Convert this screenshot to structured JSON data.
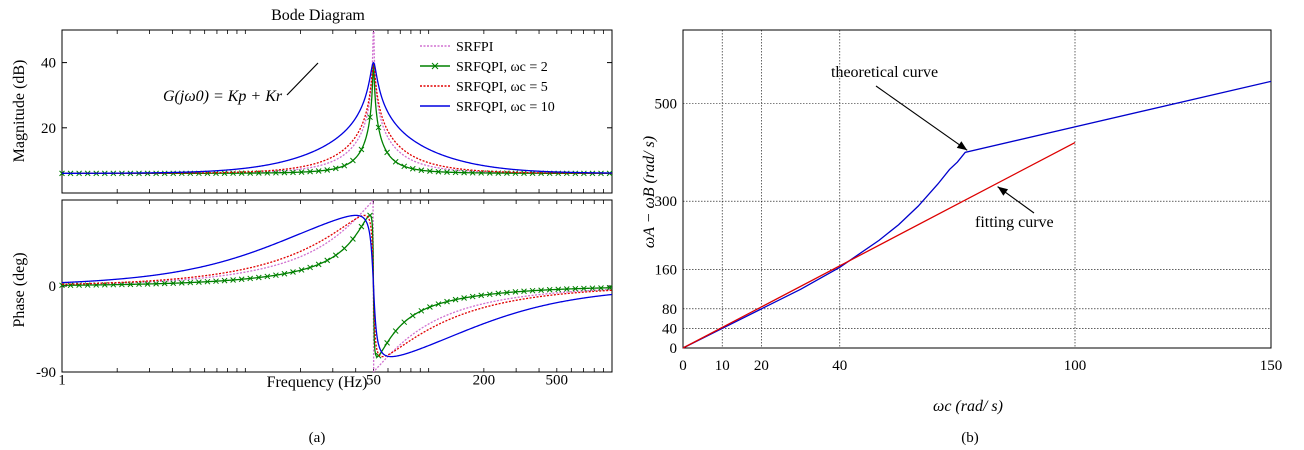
{
  "chart_data": [
    {
      "id": "a",
      "type": "line",
      "caption": "(a)",
      "title": "Bode Diagram",
      "xlabel": "Frequency  (Hz)",
      "xscale": "log",
      "xlim": [
        1,
        1000
      ],
      "xticks": [
        1,
        50,
        200,
        500
      ],
      "xtick_labels": [
        "1",
        "50",
        "200",
        "500"
      ],
      "legend_position": "top-right",
      "magnitude": {
        "ylabel": "Magnitude (dB)",
        "ylim": [
          0,
          50
        ],
        "yticks": [
          20,
          40
        ],
        "ytick_labels": [
          "20",
          "40"
        ],
        "annotation": "G(jω0) = Kp + Kr",
        "annotation_point": [
          50,
          40
        ]
      },
      "phase": {
        "ylabel": "Phase (deg)",
        "ylim": [
          -90,
          90
        ],
        "yticks": [
          -90,
          0
        ],
        "ytick_labels": [
          "-90",
          "0"
        ]
      },
      "series": [
        {
          "name": "SRFPI",
          "color": "#d070d0",
          "style": "dotted",
          "marker": "none",
          "wc": 0
        },
        {
          "name": "SRFQPI, ωc = 2",
          "color": "#008000",
          "style": "solid",
          "marker": "x",
          "wc": 2
        },
        {
          "name": "SRFQPI, ωc = 5",
          "color": "#e00000",
          "style": "dotted",
          "marker": "none",
          "wc": 5
        },
        {
          "name": "SRFQPI, ωc = 10",
          "color": "#0000e0",
          "style": "solid",
          "marker": "none",
          "wc": 10
        }
      ]
    },
    {
      "id": "b",
      "type": "line",
      "caption": "(b)",
      "xlabel": "ωc (rad/ s)",
      "ylabel": "ωA − ωB (rad/ s)",
      "xlim": [
        0,
        150
      ],
      "ylim": [
        0,
        650
      ],
      "xticks": [
        0,
        10,
        20,
        40,
        100,
        150
      ],
      "xtick_labels": [
        "0",
        "10",
        "20",
        "40",
        "100",
        "150"
      ],
      "yticks": [
        0,
        40,
        80,
        160,
        300,
        500
      ],
      "ytick_labels": [
        "0",
        "40",
        "80",
        "160",
        "300",
        "500"
      ],
      "grid": true,
      "series": [
        {
          "name": "theoretical curve",
          "color": "#0000cc",
          "x": [
            0,
            10,
            20,
            30,
            40,
            50,
            55,
            60,
            65,
            68,
            70,
            72,
            150
          ],
          "y": [
            0,
            40,
            80,
            120,
            165,
            220,
            252,
            290,
            335,
            365,
            380,
            400,
            545
          ]
        },
        {
          "name": "fitting curve",
          "color": "#dd0000",
          "x": [
            0,
            100
          ],
          "y": [
            0,
            420
          ]
        }
      ],
      "annotations": [
        {
          "text": "theoretical curve",
          "arrow_to": [
            72,
            400
          ]
        },
        {
          "text": "fitting curve",
          "arrow_to": [
            80,
            336
          ]
        }
      ]
    }
  ]
}
